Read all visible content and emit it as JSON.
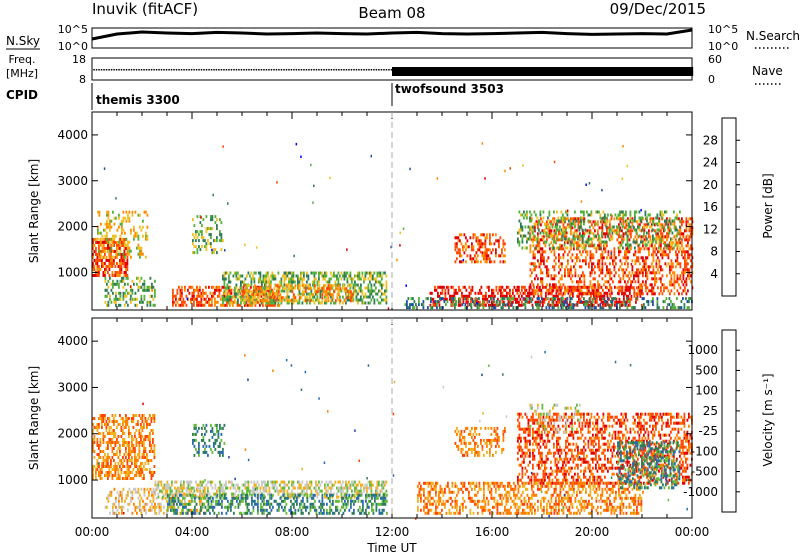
{
  "header": {
    "station": "Inuvik (fitACF)",
    "beam": "Beam 08",
    "date": "09/Dec/2015"
  },
  "chart_data": {
    "type": "heatmap",
    "x_axis": {
      "label": "Time UT",
      "range_hours": [
        0,
        24
      ],
      "tick_hours": [
        0,
        4,
        8,
        12,
        16,
        20,
        24
      ],
      "tick_labels": [
        "00:00",
        "04:00",
        "08:00",
        "12:00",
        "16:00",
        "20:00",
        "00:00"
      ]
    },
    "mode_change_hour": 12,
    "nsky_panel": {
      "left_label": "N.Sky",
      "right_label": "N.Search",
      "left_ticks": [
        "10^5",
        "10^0"
      ],
      "right_ticks": [
        "10^5",
        "10^0"
      ],
      "trace_level": [
        0.45,
        0.7,
        0.8,
        0.75,
        0.72,
        0.78,
        0.75,
        0.7,
        0.72,
        0.75,
        0.72,
        0.7,
        0.75,
        0.78,
        0.72,
        0.7,
        0.72,
        0.75,
        0.78,
        0.72,
        0.68,
        0.7,
        0.72,
        0.7,
        0.9
      ]
    },
    "freq_panel": {
      "left_label": "Freq.",
      "left_unit": "[MHz]",
      "right_label": "Nave",
      "left_ticks": [
        "18",
        "8"
      ],
      "right_ticks": [
        "60",
        "0"
      ]
    },
    "cpid_panel": {
      "label": "CPID",
      "programs": [
        {
          "name": "themis 3300",
          "start_hour": 0
        },
        {
          "name": "twofsound 3503",
          "start_hour": 12
        }
      ]
    },
    "panels": [
      {
        "name": "power",
        "ylabel": "Slant Range [km]",
        "y_range": [
          180,
          4500
        ],
        "y_ticks": [
          1000,
          2000,
          3000,
          4000
        ],
        "colorbar_label": "Power [dB]",
        "colorbar_ticks": [
          "4",
          "8",
          "12",
          "16",
          "20",
          "24",
          "28"
        ],
        "colors": [
          "#0000ff",
          "#1f4fa8",
          "#2e7d57",
          "#55b03a",
          "#f0c020",
          "#ff8c00",
          "#ff4a00",
          "#e00000"
        ],
        "regions": [
          {
            "t": [
              0,
              1.4
            ],
            "r": [
              900,
              1700
            ],
            "c": 6,
            "d": 0.6
          },
          {
            "t": [
              0.2,
              2.2
            ],
            "r": [
              1300,
              2300
            ],
            "c": 4,
            "d": 0.3
          },
          {
            "t": [
              0.5,
              2.5
            ],
            "r": [
              250,
              900
            ],
            "c": 3,
            "d": 0.4
          },
          {
            "t": [
              3.2,
              7.5
            ],
            "r": [
              250,
              650
            ],
            "c": 6,
            "d": 0.55
          },
          {
            "t": [
              5.2,
              11.8
            ],
            "r": [
              300,
              1000
            ],
            "c": 3,
            "d": 0.5
          },
          {
            "t": [
              6.0,
              10.5
            ],
            "r": [
              350,
              700
            ],
            "c": 5,
            "d": 0.4
          },
          {
            "t": [
              4.0,
              5.2
            ],
            "r": [
              1400,
              2200
            ],
            "c": 3,
            "d": 0.3
          },
          {
            "t": [
              13.5,
              22.0
            ],
            "r": [
              250,
              700
            ],
            "c": 7,
            "d": 0.5
          },
          {
            "t": [
              14.5,
              16.5
            ],
            "r": [
              1200,
              1800
            ],
            "c": 6,
            "d": 0.4
          },
          {
            "t": [
              17.5,
              24.0
            ],
            "r": [
              500,
              2200
            ],
            "c": 6,
            "d": 0.4
          },
          {
            "t": [
              17.0,
              23.5
            ],
            "r": [
              1500,
              2300
            ],
            "c": 3,
            "d": 0.3
          },
          {
            "t": [
              12.5,
              24.0
            ],
            "r": [
              200,
              400
            ],
            "c": 2,
            "d": 0.35
          }
        ]
      },
      {
        "name": "velocity",
        "ylabel": "Slant Range [km]",
        "y_range": [
          180,
          4500
        ],
        "y_ticks": [
          1000,
          2000,
          3000,
          4000
        ],
        "colorbar_label": "Velocity [m s⁻¹]",
        "colorbar_ticks": [
          "1000",
          "500",
          "100",
          "25",
          "-25",
          "-100",
          "-500",
          "-1000"
        ],
        "colors": [
          "#1f3fb0",
          "#2a6bb0",
          "#2e7d57",
          "#66bb3a",
          "#c8c8c8",
          "#f0b020",
          "#ff8000",
          "#ff4500",
          "#e00000"
        ],
        "regions": [
          {
            "t": [
              0,
              2.5
            ],
            "r": [
              1000,
              2400
            ],
            "c": 6,
            "d": 0.5
          },
          {
            "t": [
              0.5,
              4.5
            ],
            "r": [
              250,
              800
            ],
            "c": 5,
            "d": 0.35
          },
          {
            "t": [
              2.5,
              11.8
            ],
            "r": [
              600,
              950
            ],
            "c": 4,
            "d": 0.55
          },
          {
            "t": [
              3.0,
              11.8
            ],
            "r": [
              250,
              650
            ],
            "c": 2,
            "d": 0.45
          },
          {
            "t": [
              4.0,
              5.3
            ],
            "r": [
              1500,
              2200
            ],
            "c": 2,
            "d": 0.3
          },
          {
            "t": [
              13.0,
              22.0
            ],
            "r": [
              250,
              900
            ],
            "c": 6,
            "d": 0.45
          },
          {
            "t": [
              14.5,
              16.5
            ],
            "r": [
              1500,
              2100
            ],
            "c": 6,
            "d": 0.4
          },
          {
            "t": [
              17.0,
              24.0
            ],
            "r": [
              900,
              2400
            ],
            "c": 7,
            "d": 0.45
          },
          {
            "t": [
              21.0,
              23.5
            ],
            "r": [
              800,
              1800
            ],
            "c": 2,
            "d": 0.4
          },
          {
            "t": [
              17.5,
              19.5
            ],
            "r": [
              2000,
              2600
            ],
            "c": 4,
            "d": 0.2
          }
        ]
      }
    ]
  }
}
